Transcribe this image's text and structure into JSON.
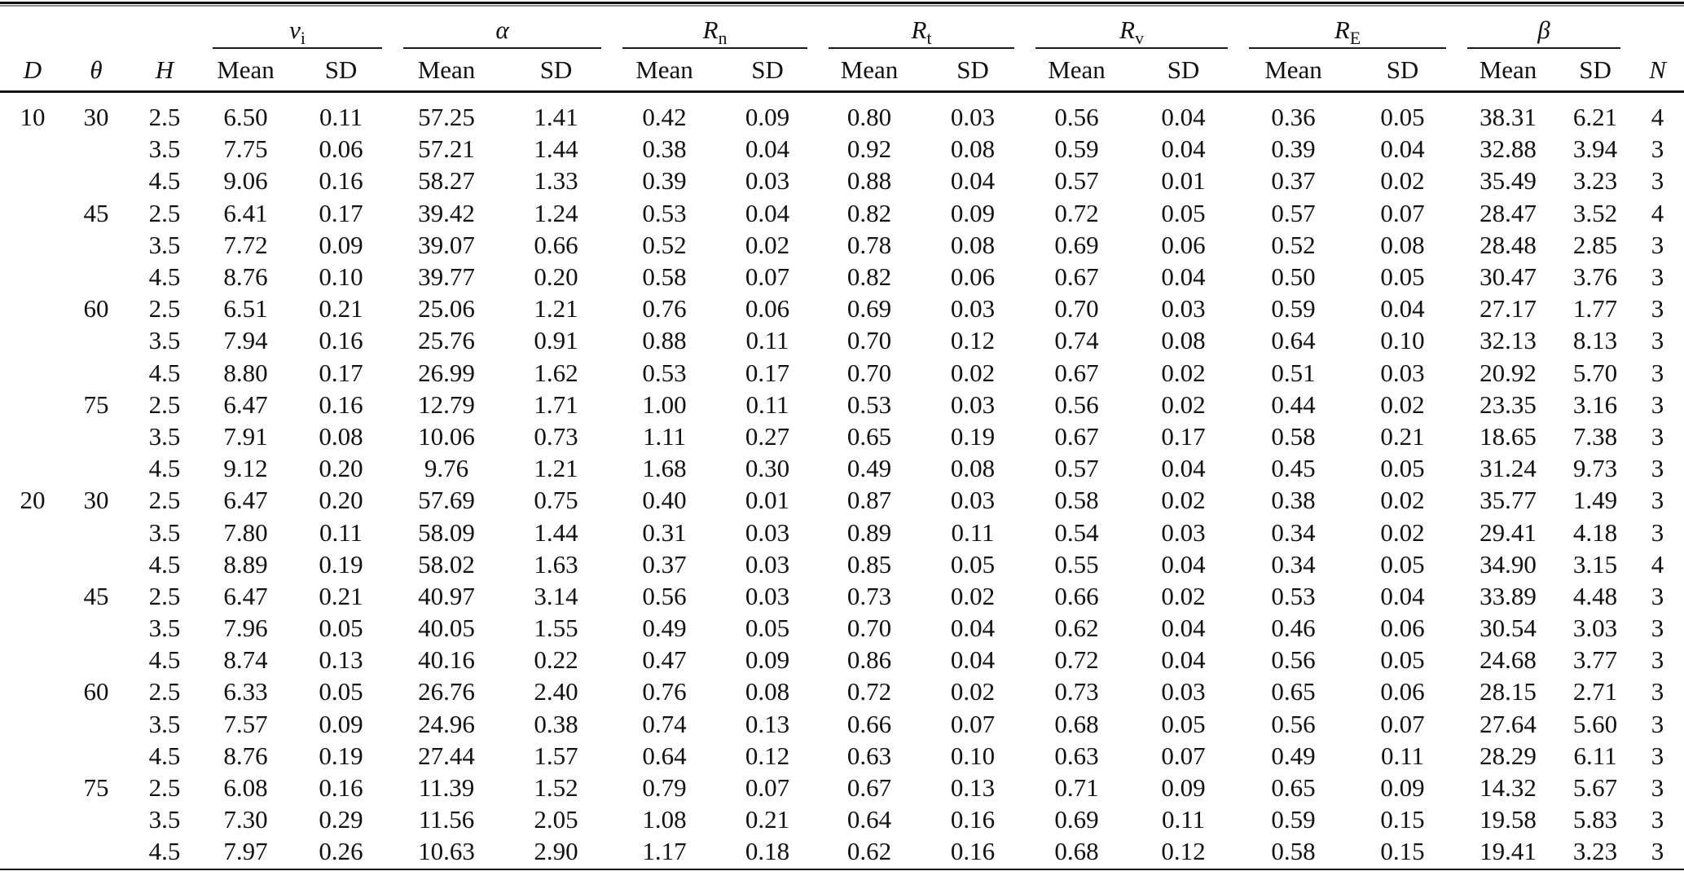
{
  "table": {
    "id_columns": [
      {
        "label": "D"
      },
      {
        "label": "θ"
      },
      {
        "label": "H"
      }
    ],
    "groups": [
      {
        "base": "v",
        "sub": "i"
      },
      {
        "base": "α",
        "sub": ""
      },
      {
        "base": "R",
        "sub": "n"
      },
      {
        "base": "R",
        "sub": "t"
      },
      {
        "base": "R",
        "sub": "v"
      },
      {
        "base": "R",
        "sub": "E"
      },
      {
        "base": "β",
        "sub": ""
      }
    ],
    "stat_labels": {
      "mean": "Mean",
      "sd": "SD"
    },
    "n_label": "N",
    "rows": [
      [
        "10",
        "30",
        "2.5",
        "6.50",
        "0.11",
        "57.25",
        "1.41",
        "0.42",
        "0.09",
        "0.80",
        "0.03",
        "0.56",
        "0.04",
        "0.36",
        "0.05",
        "38.31",
        "6.21",
        "4"
      ],
      [
        "",
        "",
        "3.5",
        "7.75",
        "0.06",
        "57.21",
        "1.44",
        "0.38",
        "0.04",
        "0.92",
        "0.08",
        "0.59",
        "0.04",
        "0.39",
        "0.04",
        "32.88",
        "3.94",
        "3"
      ],
      [
        "",
        "",
        "4.5",
        "9.06",
        "0.16",
        "58.27",
        "1.33",
        "0.39",
        "0.03",
        "0.88",
        "0.04",
        "0.57",
        "0.01",
        "0.37",
        "0.02",
        "35.49",
        "3.23",
        "3"
      ],
      [
        "",
        "45",
        "2.5",
        "6.41",
        "0.17",
        "39.42",
        "1.24",
        "0.53",
        "0.04",
        "0.82",
        "0.09",
        "0.72",
        "0.05",
        "0.57",
        "0.07",
        "28.47",
        "3.52",
        "4"
      ],
      [
        "",
        "",
        "3.5",
        "7.72",
        "0.09",
        "39.07",
        "0.66",
        "0.52",
        "0.02",
        "0.78",
        "0.08",
        "0.69",
        "0.06",
        "0.52",
        "0.08",
        "28.48",
        "2.85",
        "3"
      ],
      [
        "",
        "",
        "4.5",
        "8.76",
        "0.10",
        "39.77",
        "0.20",
        "0.58",
        "0.07",
        "0.82",
        "0.06",
        "0.67",
        "0.04",
        "0.50",
        "0.05",
        "30.47",
        "3.76",
        "3"
      ],
      [
        "",
        "60",
        "2.5",
        "6.51",
        "0.21",
        "25.06",
        "1.21",
        "0.76",
        "0.06",
        "0.69",
        "0.03",
        "0.70",
        "0.03",
        "0.59",
        "0.04",
        "27.17",
        "1.77",
        "3"
      ],
      [
        "",
        "",
        "3.5",
        "7.94",
        "0.16",
        "25.76",
        "0.91",
        "0.88",
        "0.11",
        "0.70",
        "0.12",
        "0.74",
        "0.08",
        "0.64",
        "0.10",
        "32.13",
        "8.13",
        "3"
      ],
      [
        "",
        "",
        "4.5",
        "8.80",
        "0.17",
        "26.99",
        "1.62",
        "0.53",
        "0.17",
        "0.70",
        "0.02",
        "0.67",
        "0.02",
        "0.51",
        "0.03",
        "20.92",
        "5.70",
        "3"
      ],
      [
        "",
        "75",
        "2.5",
        "6.47",
        "0.16",
        "12.79",
        "1.71",
        "1.00",
        "0.11",
        "0.53",
        "0.03",
        "0.56",
        "0.02",
        "0.44",
        "0.02",
        "23.35",
        "3.16",
        "3"
      ],
      [
        "",
        "",
        "3.5",
        "7.91",
        "0.08",
        "10.06",
        "0.73",
        "1.11",
        "0.27",
        "0.65",
        "0.19",
        "0.67",
        "0.17",
        "0.58",
        "0.21",
        "18.65",
        "7.38",
        "3"
      ],
      [
        "",
        "",
        "4.5",
        "9.12",
        "0.20",
        "9.76",
        "1.21",
        "1.68",
        "0.30",
        "0.49",
        "0.08",
        "0.57",
        "0.04",
        "0.45",
        "0.05",
        "31.24",
        "9.73",
        "3"
      ],
      [
        "20",
        "30",
        "2.5",
        "6.47",
        "0.20",
        "57.69",
        "0.75",
        "0.40",
        "0.01",
        "0.87",
        "0.03",
        "0.58",
        "0.02",
        "0.38",
        "0.02",
        "35.77",
        "1.49",
        "3"
      ],
      [
        "",
        "",
        "3.5",
        "7.80",
        "0.11",
        "58.09",
        "1.44",
        "0.31",
        "0.03",
        "0.89",
        "0.11",
        "0.54",
        "0.03",
        "0.34",
        "0.02",
        "29.41",
        "4.18",
        "3"
      ],
      [
        "",
        "",
        "4.5",
        "8.89",
        "0.19",
        "58.02",
        "1.63",
        "0.37",
        "0.03",
        "0.85",
        "0.05",
        "0.55",
        "0.04",
        "0.34",
        "0.05",
        "34.90",
        "3.15",
        "4"
      ],
      [
        "",
        "45",
        "2.5",
        "6.47",
        "0.21",
        "40.97",
        "3.14",
        "0.56",
        "0.03",
        "0.73",
        "0.02",
        "0.66",
        "0.02",
        "0.53",
        "0.04",
        "33.89",
        "4.48",
        "3"
      ],
      [
        "",
        "",
        "3.5",
        "7.96",
        "0.05",
        "40.05",
        "1.55",
        "0.49",
        "0.05",
        "0.70",
        "0.04",
        "0.62",
        "0.04",
        "0.46",
        "0.06",
        "30.54",
        "3.03",
        "3"
      ],
      [
        "",
        "",
        "4.5",
        "8.74",
        "0.13",
        "40.16",
        "0.22",
        "0.47",
        "0.09",
        "0.86",
        "0.04",
        "0.72",
        "0.04",
        "0.56",
        "0.05",
        "24.68",
        "3.77",
        "3"
      ],
      [
        "",
        "60",
        "2.5",
        "6.33",
        "0.05",
        "26.76",
        "2.40",
        "0.76",
        "0.08",
        "0.72",
        "0.02",
        "0.73",
        "0.03",
        "0.65",
        "0.06",
        "28.15",
        "2.71",
        "3"
      ],
      [
        "",
        "",
        "3.5",
        "7.57",
        "0.09",
        "24.96",
        "0.38",
        "0.74",
        "0.13",
        "0.66",
        "0.07",
        "0.68",
        "0.05",
        "0.56",
        "0.07",
        "27.64",
        "5.60",
        "3"
      ],
      [
        "",
        "",
        "4.5",
        "8.76",
        "0.19",
        "27.44",
        "1.57",
        "0.64",
        "0.12",
        "0.63",
        "0.10",
        "0.63",
        "0.07",
        "0.49",
        "0.11",
        "28.29",
        "6.11",
        "3"
      ],
      [
        "",
        "75",
        "2.5",
        "6.08",
        "0.16",
        "11.39",
        "1.52",
        "0.79",
        "0.07",
        "0.67",
        "0.13",
        "0.71",
        "0.09",
        "0.65",
        "0.09",
        "14.32",
        "5.67",
        "3"
      ],
      [
        "",
        "",
        "3.5",
        "7.30",
        "0.29",
        "11.56",
        "2.05",
        "1.08",
        "0.21",
        "0.64",
        "0.16",
        "0.69",
        "0.11",
        "0.59",
        "0.15",
        "19.58",
        "5.83",
        "3"
      ],
      [
        "",
        "",
        "4.5",
        "7.97",
        "0.26",
        "10.63",
        "2.90",
        "1.17",
        "0.18",
        "0.62",
        "0.16",
        "0.68",
        "0.12",
        "0.58",
        "0.15",
        "19.41",
        "3.23",
        "3"
      ]
    ]
  }
}
